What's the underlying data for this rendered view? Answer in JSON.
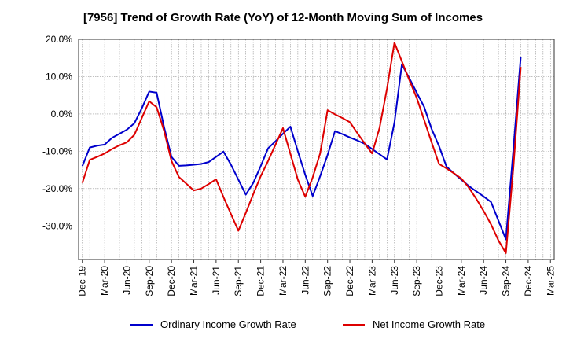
{
  "chart_data": {
    "type": "line",
    "title": "[7956]  Trend of Growth Rate (YoY) of 12-Month Moving Sum of Incomes",
    "xlabel": "",
    "ylabel": "",
    "ylim": [
      -39,
      20
    ],
    "yticks": [
      20,
      10,
      0,
      -10,
      -20,
      -30
    ],
    "ytick_labels": [
      "20.0%",
      "10.0%",
      "0.0%",
      "-10.0%",
      "-20.0%",
      "-30.0%"
    ],
    "xtick_labels": [
      "Dec-19",
      "Mar-20",
      "Jun-20",
      "Sep-20",
      "Dec-20",
      "Mar-21",
      "Jun-21",
      "Sep-21",
      "Dec-21",
      "Mar-22",
      "Jun-22",
      "Sep-22",
      "Dec-22",
      "Mar-23",
      "Jun-23",
      "Sep-23",
      "Dec-23",
      "Mar-24",
      "Jun-24",
      "Sep-24",
      "Dec-24",
      "Mar-25"
    ],
    "x": [
      "Dec-19",
      "Jan-20",
      "Feb-20",
      "Mar-20",
      "Apr-20",
      "May-20",
      "Jun-20",
      "Jul-20",
      "Aug-20",
      "Sep-20",
      "Oct-20",
      "Nov-20",
      "Dec-20",
      "Jan-21",
      "Feb-21",
      "Mar-21",
      "Apr-21",
      "May-21",
      "Jun-21",
      "Jul-21",
      "Aug-21",
      "Sep-21",
      "Oct-21",
      "Nov-21",
      "Dec-21",
      "Jan-22",
      "Feb-22",
      "Mar-22",
      "Apr-22",
      "May-22",
      "Jun-22",
      "Jul-22",
      "Aug-22",
      "Sep-22",
      "Oct-22",
      "Nov-22",
      "Dec-22",
      "Jan-23",
      "Feb-23",
      "Mar-23",
      "Apr-23",
      "May-23",
      "Jun-23",
      "Jul-23",
      "Aug-23",
      "Sep-23",
      "Oct-23",
      "Nov-23",
      "Dec-23",
      "Jan-24",
      "Feb-24",
      "Mar-24",
      "Apr-24",
      "May-24",
      "Jun-24",
      "Jul-24",
      "Aug-24",
      "Sep-24",
      "Oct-24",
      "Nov-24",
      "Dec-24",
      "Jan-25",
      "Feb-25",
      "Mar-25"
    ],
    "series": [
      {
        "name": "Ordinary Income Growth Rate",
        "color": "#0000cc",
        "values": [
          -14,
          -9,
          -8.5,
          -8.2,
          -6.4,
          -5.3,
          -4.2,
          -2.5,
          1.5,
          6,
          5.7,
          -3.5,
          -11.5,
          -13.9,
          -13.8,
          -13.6,
          -13.4,
          -12.9,
          -11.5,
          -10.1,
          -13.6,
          -17.6,
          -21.6,
          -18.5,
          -14,
          -9.2,
          -7.3,
          -5.3,
          -3.4,
          -10,
          -16.3,
          -22,
          -16.7,
          -11,
          -4.6,
          -5.4,
          -6.3,
          -7.1,
          -8,
          -9.4,
          -10.8,
          -12.2,
          -2.3,
          13.3,
          9.6,
          5.7,
          1.9,
          -4,
          -8.6,
          -14.1,
          -15.9,
          -17.6,
          -19.3,
          -20.7,
          -22.1,
          -23.6,
          -28.6,
          -33.6,
          -9.7,
          15.3,
          null,
          null,
          null,
          null
        ]
      },
      {
        "name": "Net Income Growth Rate",
        "color": "#dd0000",
        "values": [
          -18.5,
          -12.3,
          -11.5,
          -10.6,
          -9.4,
          -8.4,
          -7.6,
          -5.6,
          -1.1,
          3.4,
          1.8,
          -4.5,
          -12.6,
          -16.9,
          -18.7,
          -20.5,
          -20,
          -18.8,
          -17.5,
          -22.3,
          -26.8,
          -31.3,
          -26.5,
          -21.5,
          -16.7,
          -12.6,
          -8.2,
          -3.8,
          -10.7,
          -17.6,
          -22.2,
          -17,
          -10.6,
          1,
          -0.1,
          -1.1,
          -2.2,
          -5.1,
          -7.9,
          -10.6,
          -3.7,
          6.8,
          19.1,
          14.1,
          9.1,
          4.3,
          -1.6,
          -7.6,
          -13.4,
          -14.6,
          -15.9,
          -17.3,
          -19.7,
          -22.7,
          -26,
          -29.6,
          -33.9,
          -37.3,
          -14.6,
          12.6,
          null,
          null,
          null,
          null
        ]
      }
    ],
    "grid": true,
    "legend_position": "bottom"
  }
}
